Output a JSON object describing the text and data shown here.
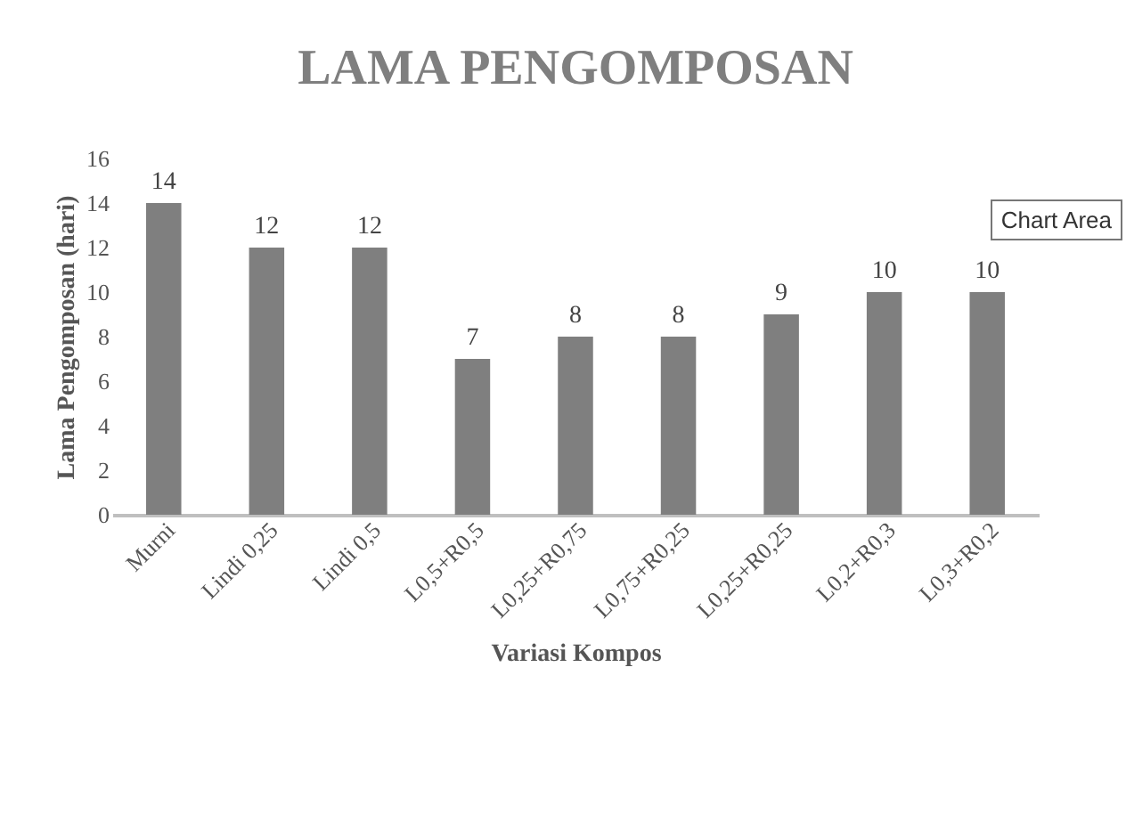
{
  "chart_data": {
    "type": "bar",
    "title": "LAMA PENGOMPOSAN",
    "xlabel": "Variasi Kompos",
    "ylabel": "Lama Pengomposan (hari)",
    "categories": [
      "Murni",
      "Lindi 0,25",
      "Lindi 0,5",
      "L0,5+R0,5",
      "L0,25+R0,75",
      "L0,75+R0,25",
      "L0,25+R0,25",
      "L0,2+R0,3",
      "L0,3+R0,2"
    ],
    "values": [
      14,
      12,
      12,
      7,
      8,
      8,
      9,
      10,
      10
    ],
    "color": "#7f7f7f",
    "ylim": [
      0,
      16
    ],
    "yticks": [
      0,
      2,
      4,
      6,
      8,
      10,
      12,
      14,
      16
    ],
    "grid": false,
    "data_labels": true,
    "annotations": [
      "Chart Area"
    ]
  }
}
